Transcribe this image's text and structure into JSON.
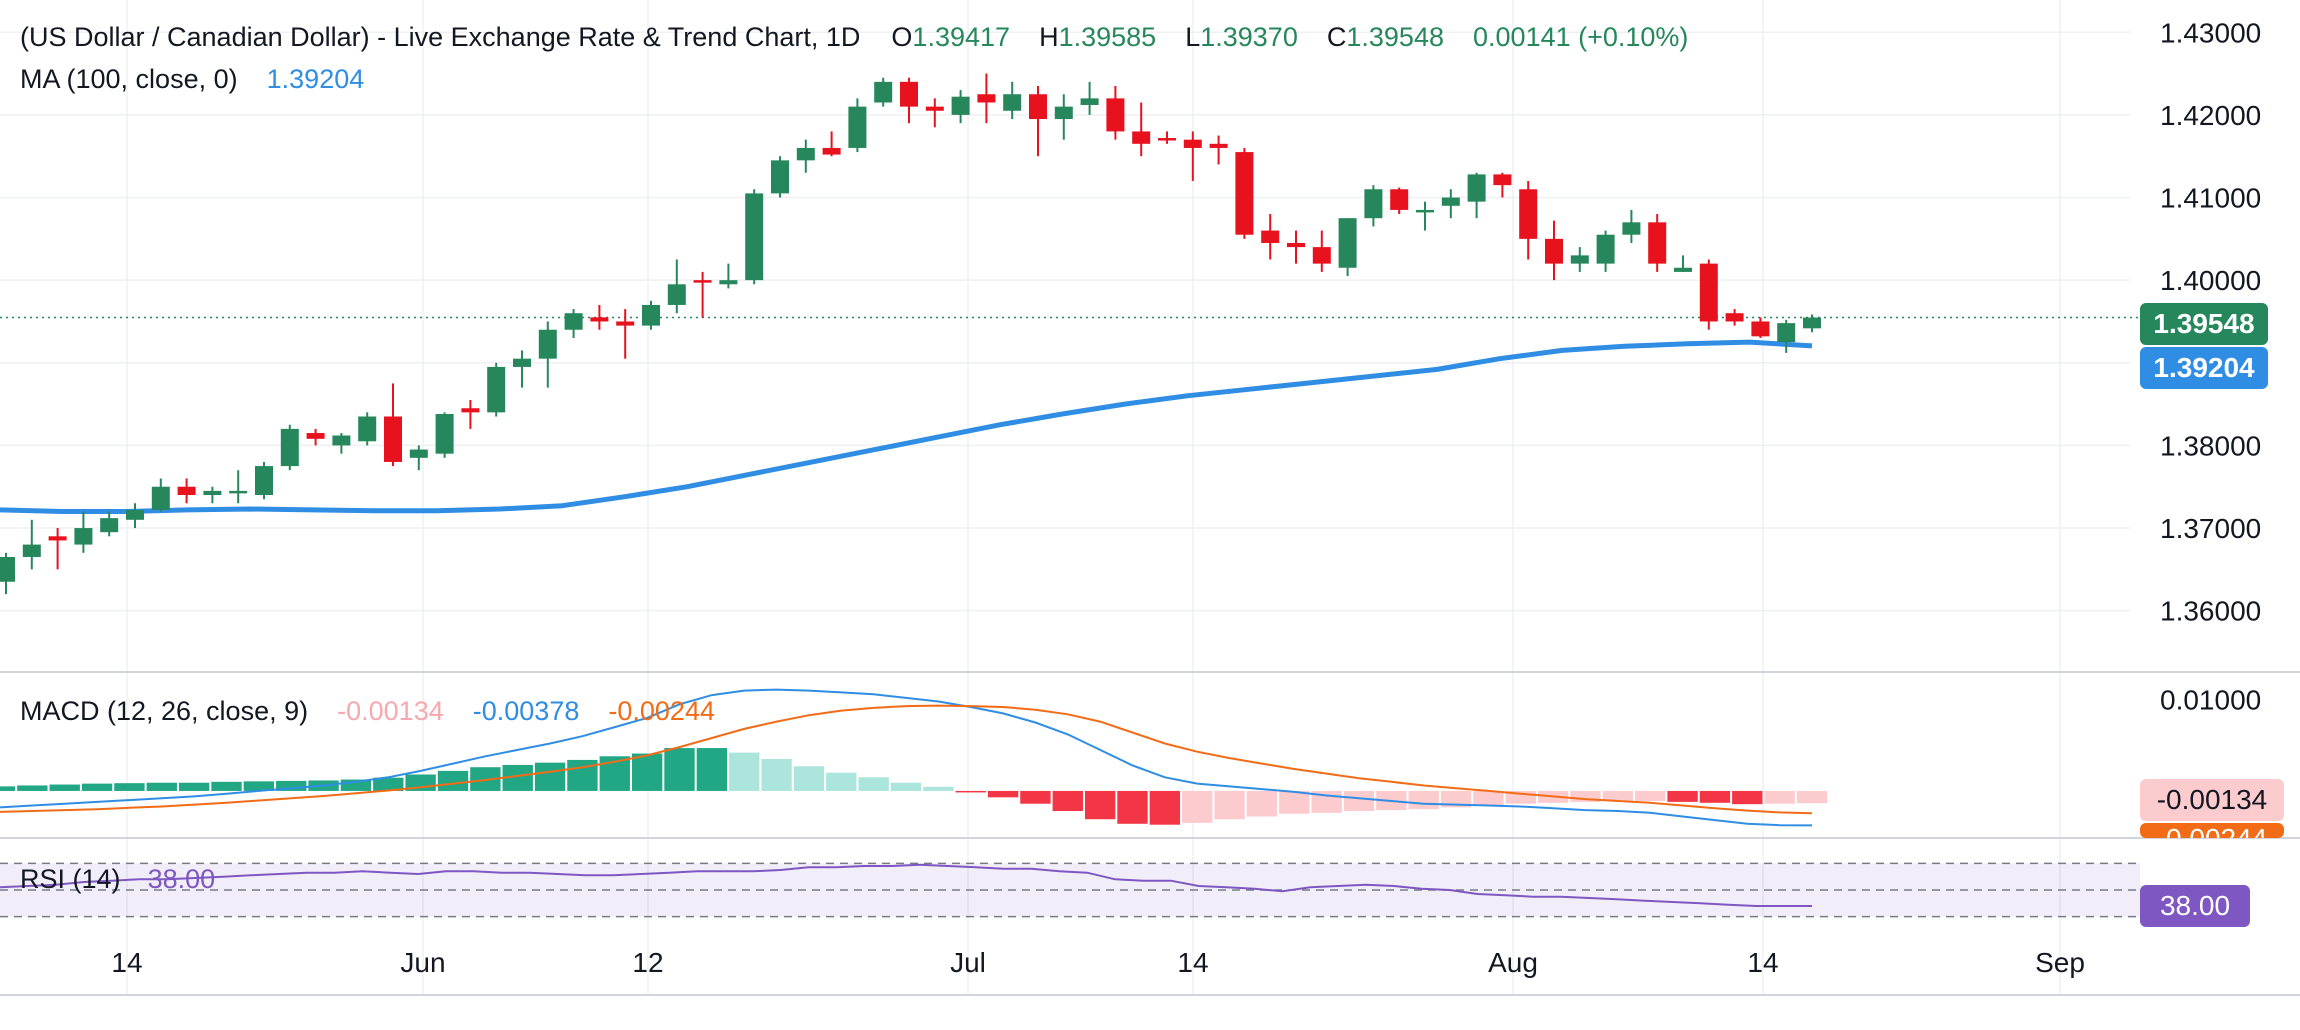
{
  "header": {
    "symbol_title": "(US Dollar / Canadian Dollar) - Live Exchange Rate & Trend Chart, 1D",
    "open_label": "O",
    "open": "1.39417",
    "high_label": "H",
    "high": "1.39585",
    "low_label": "L",
    "low": "1.39370",
    "close_label": "C",
    "close": "1.39548",
    "change": "0.00141 (+0.10%)",
    "ma_label": "MA (100, close, 0)",
    "ma_value": "1.39204",
    "macd_label": "MACD (12, 26, close, 9)",
    "macd_hist": "-0.00134",
    "macd_line": "-0.00378",
    "macd_signal": "-0.00244",
    "rsi_label": "RSI (14)",
    "rsi_value": "38.00"
  },
  "colors": {
    "up": "#26875c",
    "down": "#e8121f",
    "ma": "#2f8de4",
    "macd_line": "#2f8de4",
    "macd_signal": "#f26b17",
    "rsi": "#7e57c2",
    "hist_up_strong": "#22a785",
    "hist_up_weak": "#ace5dc",
    "hist_down_strong": "#f23645",
    "hist_down_weak": "#fccbcd"
  },
  "price_axis": {
    "ticks": [
      "1.43000",
      "1.42000",
      "1.41000",
      "1.40000",
      "1.38000",
      "1.37000",
      "1.36000"
    ],
    "last_price_tag": "1.39548",
    "ma_tag": "1.39204"
  },
  "macd_axis": {
    "ticks": [
      "0.01000"
    ],
    "hist_tag": "-0.00134",
    "signal_tag": "-0.00244"
  },
  "rsi_axis": {
    "tag": "38.00"
  },
  "time_axis": {
    "ticks": [
      "14",
      "Jun",
      "12",
      "Jul",
      "14",
      "Aug",
      "14",
      "Sep"
    ]
  },
  "chart_data": {
    "type": "candlestick",
    "title": "(US Dollar / Canadian Dollar) - Live Exchange Rate & Trend Chart, 1D",
    "ylim": [
      1.355,
      1.431
    ],
    "candles": [
      [
        1.3635,
        1.367,
        1.362,
        1.3665
      ],
      [
        1.3665,
        1.371,
        1.365,
        1.368
      ],
      [
        1.369,
        1.37,
        1.365,
        1.3685
      ],
      [
        1.368,
        1.372,
        1.367,
        1.37
      ],
      [
        1.3695,
        1.372,
        1.369,
        1.3712
      ],
      [
        1.371,
        1.373,
        1.37,
        1.3722
      ],
      [
        1.3722,
        1.376,
        1.372,
        1.375
      ],
      [
        1.375,
        1.376,
        1.373,
        1.374
      ],
      [
        1.374,
        1.375,
        1.373,
        1.3745
      ],
      [
        1.3745,
        1.377,
        1.373,
        1.3745
      ],
      [
        1.374,
        1.378,
        1.3735,
        1.3775
      ],
      [
        1.3775,
        1.3825,
        1.377,
        1.382
      ],
      [
        1.3815,
        1.382,
        1.38,
        1.3808
      ],
      [
        1.38,
        1.3815,
        1.379,
        1.3812
      ],
      [
        1.3805,
        1.384,
        1.38,
        1.3835
      ],
      [
        1.3835,
        1.3875,
        1.3775,
        1.378
      ],
      [
        1.3785,
        1.38,
        1.377,
        1.3795
      ],
      [
        1.379,
        1.384,
        1.3785,
        1.3838
      ],
      [
        1.3845,
        1.3855,
        1.382,
        1.384
      ],
      [
        1.384,
        1.39,
        1.3835,
        1.3895
      ],
      [
        1.3895,
        1.3915,
        1.387,
        1.3905
      ],
      [
        1.3905,
        1.395,
        1.387,
        1.394
      ],
      [
        1.394,
        1.3965,
        1.393,
        1.396
      ],
      [
        1.3955,
        1.397,
        1.394,
        1.395
      ],
      [
        1.395,
        1.3965,
        1.3905,
        1.3945
      ],
      [
        1.3945,
        1.3975,
        1.394,
        1.397
      ],
      [
        1.397,
        1.4025,
        1.396,
        1.3995
      ],
      [
        1.4,
        1.401,
        1.3955,
        1.3997
      ],
      [
        1.3995,
        1.402,
        1.399,
        1.4
      ],
      [
        1.4,
        1.411,
        1.3995,
        1.4105
      ],
      [
        1.4105,
        1.415,
        1.41,
        1.4145
      ],
      [
        1.4145,
        1.417,
        1.413,
        1.416
      ],
      [
        1.416,
        1.418,
        1.415,
        1.4152
      ],
      [
        1.416,
        1.422,
        1.4155,
        1.421
      ],
      [
        1.4215,
        1.4245,
        1.421,
        1.424
      ],
      [
        1.424,
        1.4245,
        1.419,
        1.421
      ],
      [
        1.421,
        1.422,
        1.4185,
        1.4205
      ],
      [
        1.42,
        1.423,
        1.419,
        1.4222
      ],
      [
        1.4225,
        1.425,
        1.419,
        1.4215
      ],
      [
        1.4205,
        1.424,
        1.4195,
        1.4225
      ],
      [
        1.4225,
        1.4235,
        1.415,
        1.4195
      ],
      [
        1.4195,
        1.4225,
        1.417,
        1.421
      ],
      [
        1.4212,
        1.424,
        1.42,
        1.422
      ],
      [
        1.422,
        1.4235,
        1.417,
        1.418
      ],
      [
        1.418,
        1.4215,
        1.415,
        1.4165
      ],
      [
        1.4172,
        1.418,
        1.4165,
        1.417
      ],
      [
        1.417,
        1.418,
        1.412,
        1.416
      ],
      [
        1.4165,
        1.4175,
        1.414,
        1.416
      ],
      [
        1.4155,
        1.416,
        1.405,
        1.4055
      ],
      [
        1.406,
        1.408,
        1.4025,
        1.4045
      ],
      [
        1.4045,
        1.406,
        1.402,
        1.404
      ],
      [
        1.404,
        1.406,
        1.401,
        1.402
      ],
      [
        1.4015,
        1.4075,
        1.4005,
        1.4075
      ],
      [
        1.4075,
        1.4115,
        1.4065,
        1.411
      ],
      [
        1.411,
        1.4112,
        1.408,
        1.4085
      ],
      [
        1.4085,
        1.4095,
        1.406,
        1.4085
      ],
      [
        1.409,
        1.411,
        1.4075,
        1.41
      ],
      [
        1.4095,
        1.413,
        1.4075,
        1.4128
      ],
      [
        1.4128,
        1.413,
        1.41,
        1.4115
      ],
      [
        1.411,
        1.412,
        1.4025,
        1.405
      ],
      [
        1.405,
        1.4072,
        1.4,
        1.402
      ],
      [
        1.402,
        1.404,
        1.401,
        1.403
      ],
      [
        1.402,
        1.406,
        1.401,
        1.4055
      ],
      [
        1.4055,
        1.4085,
        1.4045,
        1.407
      ],
      [
        1.407,
        1.408,
        1.401,
        1.402
      ],
      [
        1.401,
        1.403,
        1.401,
        1.4015
      ],
      [
        1.402,
        1.4025,
        1.394,
        1.395
      ],
      [
        1.396,
        1.3965,
        1.3945,
        1.395
      ],
      [
        1.395,
        1.3955,
        1.393,
        1.3932
      ],
      [
        1.3925,
        1.3952,
        1.3912,
        1.3948
      ],
      [
        1.39417,
        1.39585,
        1.3937,
        1.39548
      ]
    ],
    "ma100": [
      1.3722,
      1.372,
      1.372,
      1.3722,
      1.3723,
      1.3722,
      1.3721,
      1.3721,
      1.3723,
      1.3727,
      1.3738,
      1.375,
      1.3765,
      1.378,
      1.3795,
      1.381,
      1.3825,
      1.3838,
      1.385,
      1.386,
      1.3868,
      1.3876,
      1.3884,
      1.3892,
      1.3905,
      1.3915,
      1.392,
      1.3923,
      1.3925,
      1.39204
    ],
    "ma100_start_index": 0,
    "macd": {
      "line": [
        -0.0018,
        -0.0016,
        -0.0014,
        -0.0012,
        -0.001,
        -0.0008,
        -0.0006,
        -0.0003,
        0.0,
        0.0003,
        0.0006,
        0.001,
        0.0015,
        0.0022,
        0.003,
        0.0038,
        0.0045,
        0.0052,
        0.006,
        0.007,
        0.008,
        0.0095,
        0.0105,
        0.011,
        0.0111,
        0.011,
        0.0108,
        0.0106,
        0.0102,
        0.0098,
        0.0092,
        0.0085,
        0.0075,
        0.0062,
        0.0045,
        0.0028,
        0.0015,
        0.0008,
        0.0005,
        0.0002,
        -0.0001,
        -0.0005,
        -0.0008,
        -0.0011,
        -0.0014,
        -0.0015,
        -0.0016,
        -0.0017,
        -0.0019,
        -0.0021,
        -0.0022,
        -0.0024,
        -0.0028,
        -0.0032,
        -0.0036,
        -0.00375,
        -0.00378
      ],
      "signal": [
        -0.0023,
        -0.0022,
        -0.0021,
        -0.002,
        -0.00185,
        -0.0017,
        -0.0015,
        -0.0013,
        -0.00105,
        -0.0008,
        -0.00055,
        -0.00025,
        5e-05,
        0.0004,
        0.0008,
        0.0012,
        0.00165,
        0.0021,
        0.0026,
        0.0032,
        0.0039,
        0.0048,
        0.0058,
        0.0068,
        0.0076,
        0.0083,
        0.0088,
        0.0091,
        0.0093,
        0.00935,
        0.0093,
        0.0092,
        0.0089,
        0.0084,
        0.0076,
        0.0064,
        0.0052,
        0.0043,
        0.0036,
        0.003,
        0.0024,
        0.0019,
        0.0014,
        0.001,
        0.0006,
        0.0003,
        0.0,
        -0.0003,
        -0.0006,
        -0.0009,
        -0.0011,
        -0.0013,
        -0.0016,
        -0.0019,
        -0.00215,
        -0.00235,
        -0.00244
      ],
      "hist_last": -0.00134
    },
    "rsi": [
      52,
      53,
      54,
      56,
      57,
      58,
      58,
      59,
      60,
      61,
      62,
      63,
      63,
      64,
      63,
      62,
      64,
      64,
      63,
      63,
      62,
      61,
      61,
      62,
      63,
      64,
      64,
      64,
      65,
      67,
      67,
      68,
      68,
      69,
      68,
      67,
      66,
      66,
      64,
      63,
      58,
      57,
      57,
      53,
      52,
      51,
      49,
      52,
      53,
      54,
      53,
      51,
      50,
      47,
      46,
      45,
      45,
      44,
      43,
      42,
      41,
      40,
      39,
      38,
      38,
      38
    ],
    "rsi_last": 38.0
  }
}
